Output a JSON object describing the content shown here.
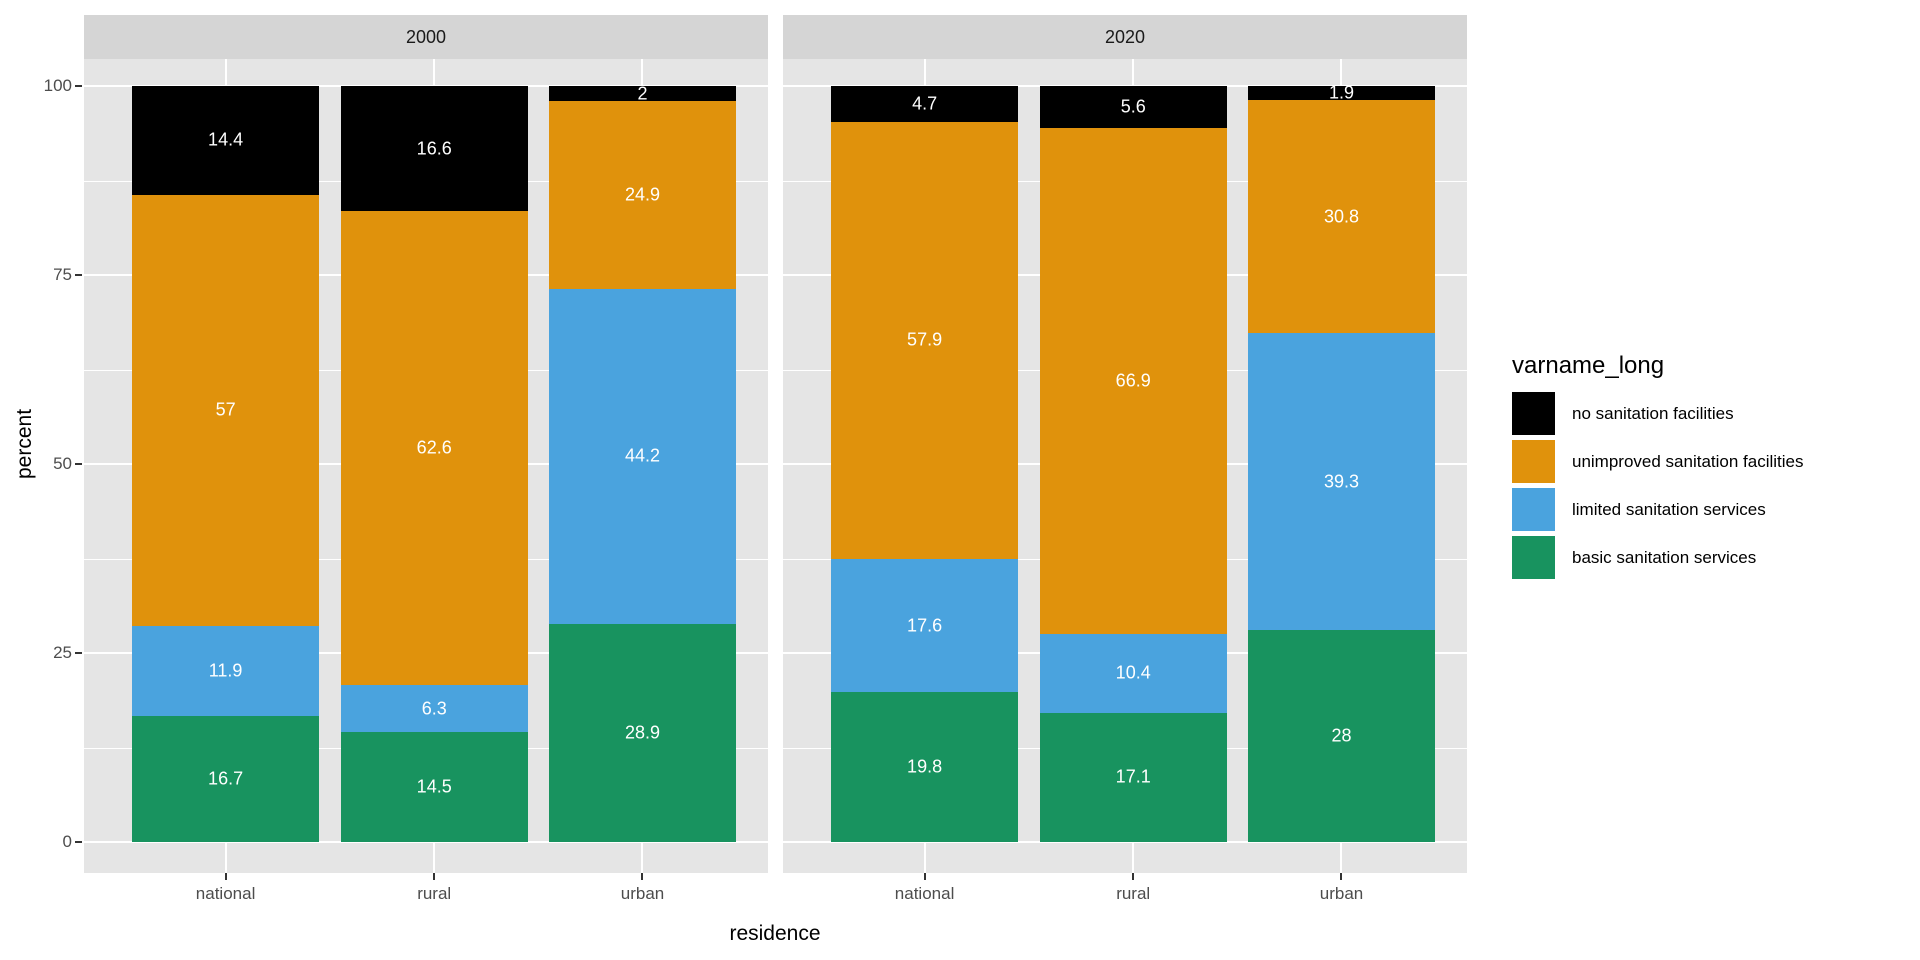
{
  "figure": {
    "background": "#FFFFFF",
    "panel_background": "#E5E5E5",
    "strip_background": "#D5D5D5",
    "grid_color": "#FFFFFF",
    "axis_text_color": "#4D4D4D",
    "axis_title_color": "#000000",
    "bar_label_color": "#FFFFFF"
  },
  "chart_data": {
    "type": "bar",
    "variant": "stacked-percent, faceted",
    "title": "",
    "xlabel": "residence",
    "ylabel": "percent",
    "ylim": [
      0,
      100
    ],
    "grid": true,
    "legend_position": "right",
    "facets": [
      "2000",
      "2020"
    ],
    "categories": [
      "national",
      "rural",
      "urban"
    ],
    "y_axis": {
      "ticks": [
        {
          "label": "0",
          "value": 0
        },
        {
          "label": "25",
          "value": 25
        },
        {
          "label": "50",
          "value": 50
        },
        {
          "label": "75",
          "value": 75
        },
        {
          "label": "100",
          "value": 100
        }
      ],
      "minor_gridlines": [
        12.5,
        37.5,
        62.5,
        87.5
      ]
    },
    "series_bottom_to_top": [
      {
        "name": "basic sanitation services",
        "color": "#18935F",
        "values_by_facet": {
          "2000": [
            "16.7",
            "14.5",
            "28.9"
          ],
          "2020": [
            "19.8",
            "17.1",
            "28"
          ]
        }
      },
      {
        "name": "limited sanitation services",
        "color": "#4AA3DE",
        "values_by_facet": {
          "2000": [
            "11.9",
            "6.3",
            "44.2"
          ],
          "2020": [
            "17.6",
            "10.4",
            "39.3"
          ]
        }
      },
      {
        "name": "unimproved sanitation facilities",
        "color": "#E0920C",
        "values_by_facet": {
          "2000": [
            "57",
            "62.6",
            "24.9"
          ],
          "2020": [
            "57.9",
            "66.9",
            "30.8"
          ]
        }
      },
      {
        "name": "no sanitation facilities",
        "color": "#000000",
        "values_by_facet": {
          "2000": [
            "14.4",
            "16.6",
            "2"
          ],
          "2020": [
            "4.7",
            "5.6",
            "1.9"
          ]
        }
      }
    ]
  },
  "legend": {
    "title": "varname_long",
    "items": [
      {
        "label": "no sanitation facilities",
        "color": "#000000"
      },
      {
        "label": "unimproved sanitation facilities",
        "color": "#E0920C"
      },
      {
        "label": "limited sanitation services",
        "color": "#4AA3DE"
      },
      {
        "label": "basic sanitation services",
        "color": "#18935F"
      }
    ]
  }
}
